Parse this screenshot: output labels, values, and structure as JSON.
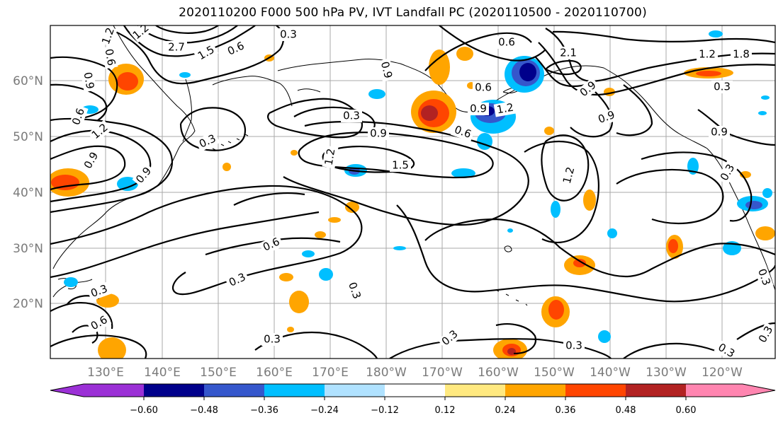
{
  "title": "2020110200 F000 500 hPa PV, IVT Landfall PC (2020110500 - 2020110700)",
  "lat_labels": [
    "60°N",
    "50°N",
    "40°N",
    "30°N",
    "20°N"
  ],
  "lon_labels": [
    "130°E",
    "140°E",
    "150°E",
    "160°E",
    "170°E",
    "180°W",
    "170°W",
    "160°W",
    "150°W",
    "140°W",
    "130°W",
    "120°W"
  ],
  "colorbar": {
    "colors": [
      "#9b30d6",
      "#00008b",
      "#3557cc",
      "#00bfff",
      "#b0e2ff",
      "#ffffff",
      "#ffe980",
      "#ffa500",
      "#ff4500",
      "#b22222",
      "#ff85b0"
    ],
    "tick_labels": [
      "−0.60",
      "−0.48",
      "−0.36",
      "−0.24",
      "−0.12",
      "0.12",
      "0.24",
      "0.36",
      "0.48",
      "0.60"
    ]
  },
  "contour_labels": [
    "1.2",
    "1.2",
    "2.7",
    "1.5",
    "0.6",
    "0.3",
    "0.9",
    "0.6",
    "0.6",
    "2.1",
    "1.2",
    "1.8",
    "0.9",
    "0.3",
    "0.9",
    "0.6",
    "0.9",
    "1.2",
    "0.3",
    "0.3",
    "0.9",
    "0.9",
    "0.6",
    "0.9",
    "1.5",
    "1.2",
    "1.2",
    "0.6",
    "0.9",
    "0.3",
    "0.9",
    "1.2",
    "0.3",
    "0.6",
    "0.3",
    "0.3",
    "0.3",
    "0.3",
    "0.6",
    "0.3",
    "0.3",
    "0.3",
    "0.3"
  ]
}
